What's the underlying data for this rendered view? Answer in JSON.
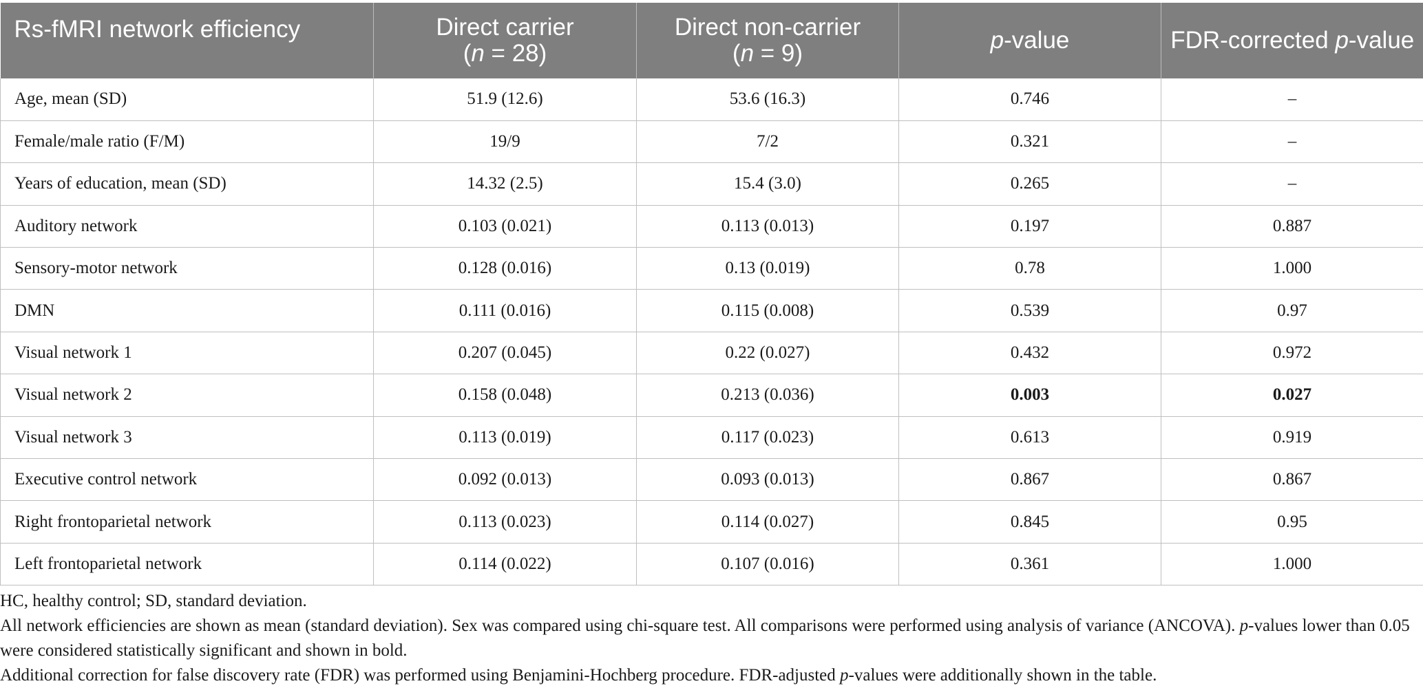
{
  "table": {
    "headers": {
      "col0": "Rs-fMRI network efficiency",
      "col1_line1": "Direct carrier",
      "col1_n_var": "n",
      "col1_n_val": " = 28)",
      "col2_line1": "Direct non-carrier",
      "col2_n_var": "n",
      "col2_n_val": " = 9)",
      "col3_var": "p",
      "col3_rest": "-value",
      "col4_pre": "FDR-corrected ",
      "col4_var": "p",
      "col4_rest": "-value"
    },
    "rows": [
      {
        "label": "Age, mean (SD)",
        "carrier": "51.9 (12.6)",
        "noncarrier": "53.6 (16.3)",
        "p": "0.746",
        "fdr": "–"
      },
      {
        "label": "Female/male ratio (F/M)",
        "carrier": "19/9",
        "noncarrier": "7/2",
        "p": "0.321",
        "fdr": "–"
      },
      {
        "label": "Years of education, mean (SD)",
        "carrier": "14.32 (2.5)",
        "noncarrier": "15.4 (3.0)",
        "p": "0.265",
        "fdr": "–"
      },
      {
        "label": "Auditory network",
        "carrier": "0.103 (0.021)",
        "noncarrier": "0.113 (0.013)",
        "p": "0.197",
        "fdr": "0.887"
      },
      {
        "label": "Sensory-motor network",
        "carrier": "0.128 (0.016)",
        "noncarrier": "0.13 (0.019)",
        "p": "0.78",
        "fdr": "1.000"
      },
      {
        "label": "DMN",
        "carrier": "0.111 (0.016)",
        "noncarrier": "0.115 (0.008)",
        "p": "0.539",
        "fdr": "0.97"
      },
      {
        "label": "Visual network 1",
        "carrier": "0.207 (0.045)",
        "noncarrier": "0.22 (0.027)",
        "p": "0.432",
        "fdr": "0.972"
      },
      {
        "label": "Visual network 2",
        "carrier": "0.158 (0.048)",
        "noncarrier": "0.213 (0.036)",
        "p": "0.003",
        "fdr": "0.027"
      },
      {
        "label": "Visual network 3",
        "carrier": "0.113 (0.019)",
        "noncarrier": "0.117 (0.023)",
        "p": "0.613",
        "fdr": "0.919"
      },
      {
        "label": "Executive control network",
        "carrier": "0.092 (0.013)",
        "noncarrier": "0.093 (0.013)",
        "p": "0.867",
        "fdr": "0.867"
      },
      {
        "label": "Right frontoparietal network",
        "carrier": "0.113 (0.023)",
        "noncarrier": "0.114 (0.027)",
        "p": "0.845",
        "fdr": "0.95"
      },
      {
        "label": "Left frontoparietal network",
        "carrier": "0.114 (0.022)",
        "noncarrier": "0.107 (0.016)",
        "p": "0.361",
        "fdr": "1.000"
      }
    ]
  },
  "notes": {
    "abbreviations": "HC, healthy control; SD, standard deviation.",
    "methods_a": "All network efficiencies are shown as mean (standard deviation). Sex was compared using chi-square test. All comparisons were performed using analysis of variance (ANCOVA). ",
    "methods_var": "p",
    "methods_b": "-values lower than 0.05 were considered statistically significant and shown in bold.",
    "fdr_a": "Additional correction for false discovery rate (FDR) was performed using Benjamini-Hochberg procedure. FDR-adjusted ",
    "fdr_var": "p",
    "fdr_b": "-values were additionally shown in the table."
  }
}
